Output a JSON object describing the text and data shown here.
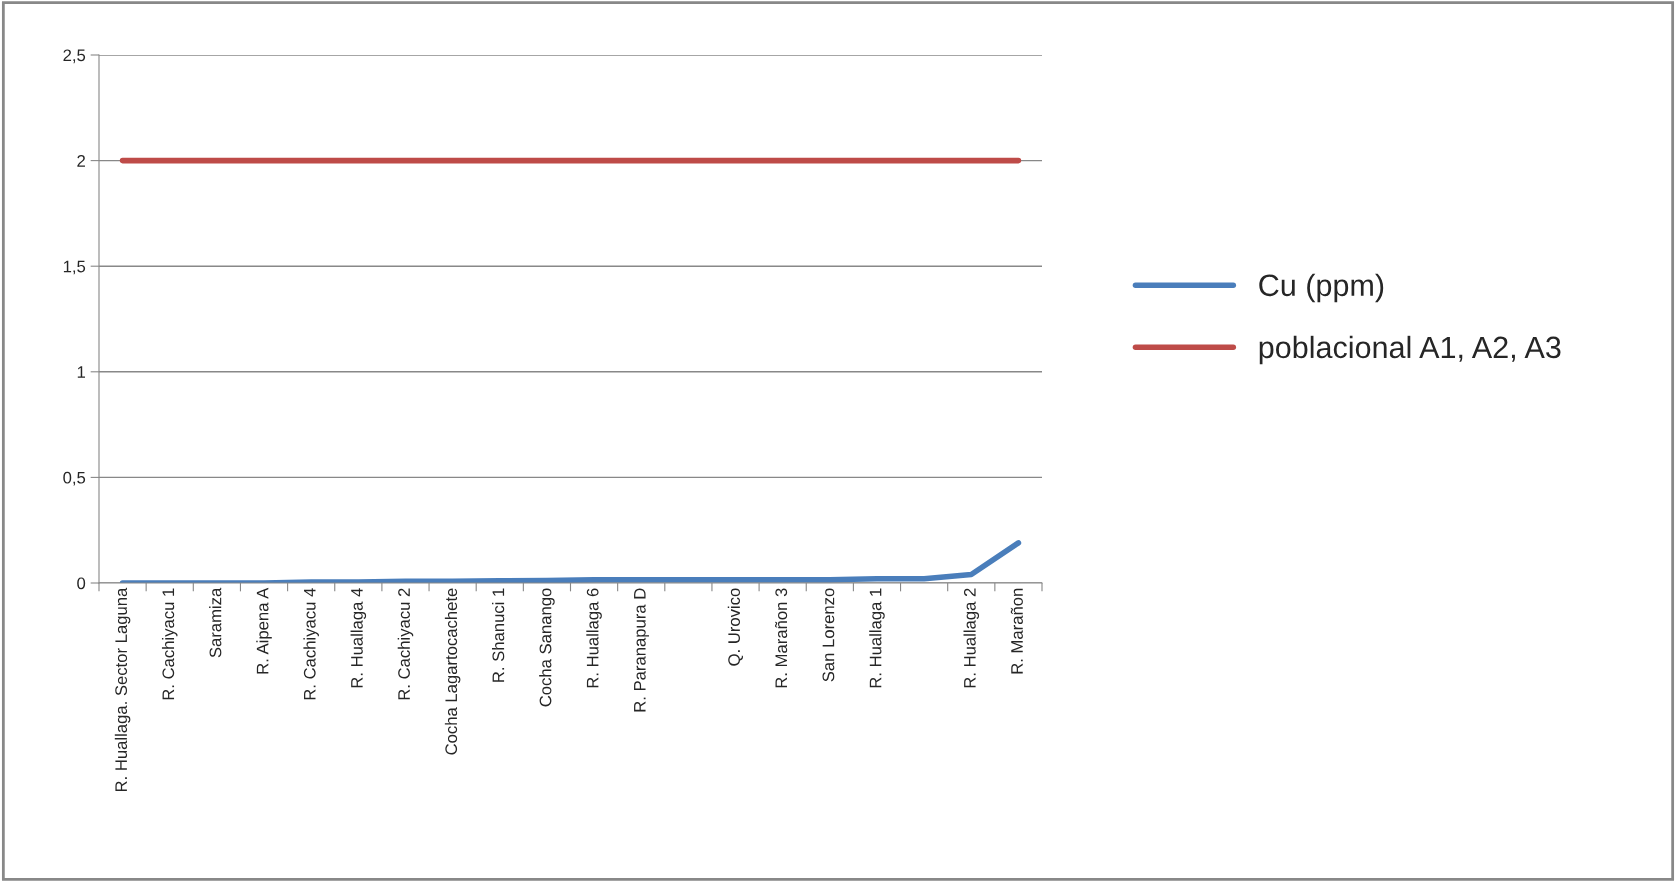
{
  "chart_data": {
    "type": "line",
    "categories": [
      "R. Huallaga. Sector Laguna",
      "R. Cachiyacu 1",
      "Saramiza",
      "R. Aipena A",
      "R. Cachiyacu 4",
      "R. Huallaga 4",
      "R. Cachiyacu 2",
      "Cocha Lagartocachete",
      "R. Shanuci 1",
      "Cocha Sanango",
      "R. Huallaga 6",
      "R. Paranapura D",
      null,
      "Q. Urovico",
      "R. Marañon 3",
      "San Lorenzo",
      "R. Huallaga 1",
      null,
      "R. Huallaga 2",
      "R. Marañon"
    ],
    "series": [
      {
        "name": "Cu (ppm)",
        "color": "#4a7ebb",
        "values": [
          0,
          0,
          0,
          0,
          0.005,
          0.005,
          0.008,
          0.008,
          0.01,
          0.012,
          0.015,
          0.015,
          0.015,
          0.015,
          0.015,
          0.015,
          0.02,
          0.02,
          0.04,
          0.19
        ]
      },
      {
        "name": "poblacional A1, A2, A3",
        "color": "#be4b48",
        "values": [
          2,
          2,
          2,
          2,
          2,
          2,
          2,
          2,
          2,
          2,
          2,
          2,
          2,
          2,
          2,
          2,
          2,
          2,
          2,
          2
        ]
      }
    ],
    "ylim": [
      0,
      2.5
    ],
    "yticks": [
      {
        "value": 0,
        "label": "0"
      },
      {
        "value": 0.5,
        "label": "0,5"
      },
      {
        "value": 1,
        "label": "1"
      },
      {
        "value": 1.5,
        "label": "1,5"
      },
      {
        "value": 2,
        "label": "2"
      },
      {
        "value": 2.5,
        "label": "2,5"
      }
    ],
    "grid": "y",
    "legend": "right",
    "marker": "none",
    "line_style": "solid"
  }
}
